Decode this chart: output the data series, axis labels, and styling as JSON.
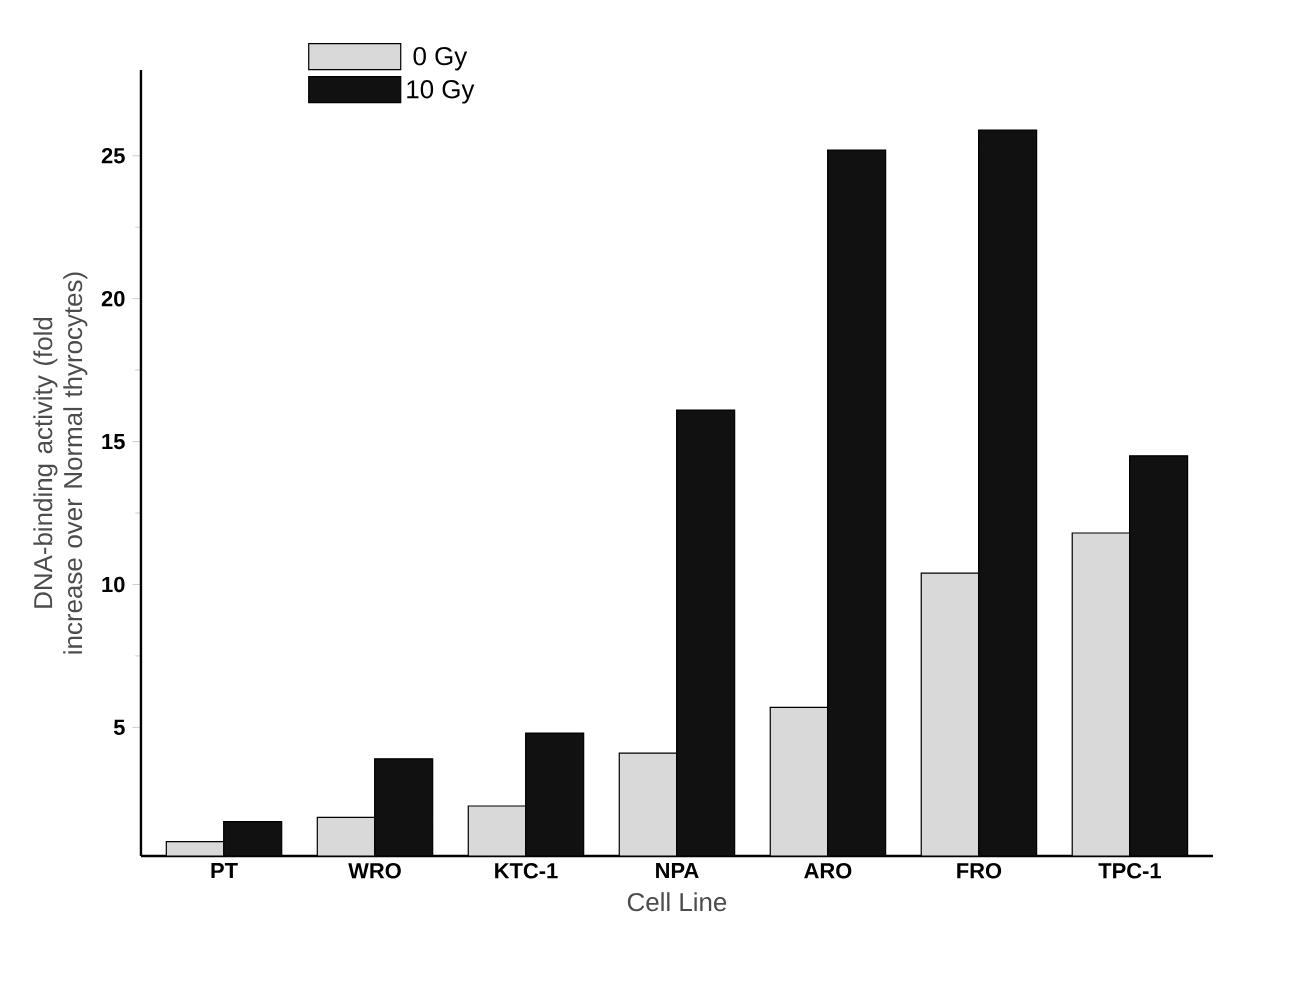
{
  "chart_data": {
    "type": "bar",
    "xlabel": "Cell Line",
    "ylabel": "DNA-binding activity (fold increase over Normal thyrocytes)",
    "categories": [
      "PT",
      "WRO",
      "KTC-1",
      "NPA",
      "ARO",
      "FRO",
      "TPC-1"
    ],
    "series": [
      {
        "name": "0 Gy",
        "color": "#d9d9d9",
        "values": [
          1.0,
          1.85,
          2.25,
          4.1,
          5.7,
          10.4,
          11.8
        ]
      },
      {
        "name": "10 Gy",
        "color": "#111111",
        "values": [
          1.7,
          3.9,
          4.8,
          16.1,
          25.2,
          25.9,
          14.5
        ]
      }
    ],
    "ylim": [
      0.5,
      28
    ],
    "yticks": [
      5,
      10,
      15,
      20,
      25
    ],
    "grid": false,
    "legend": "top left"
  }
}
